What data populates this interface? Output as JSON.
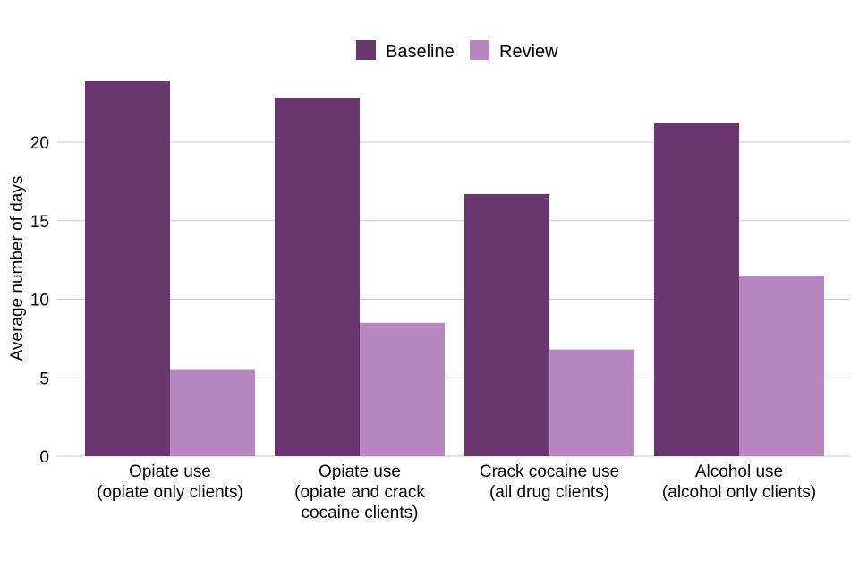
{
  "colors": {
    "baseline": "#6a3670",
    "review": "#b785c0",
    "grid": "#c8c8c8"
  },
  "chart_data": {
    "type": "bar",
    "categories": [
      [
        "Opiate use",
        "(opiate only clients)"
      ],
      [
        "Opiate use",
        "(opiate and crack",
        "cocaine clients)"
      ],
      [
        "Crack cocaine use",
        "(all drug clients)"
      ],
      [
        "Alcohol use",
        "(alcohol only clients)"
      ]
    ],
    "series": [
      {
        "name": "Baseline",
        "color_key": "baseline",
        "values": [
          23.9,
          22.8,
          16.7,
          21.2
        ]
      },
      {
        "name": "Review",
        "color_key": "review",
        "values": [
          5.5,
          8.5,
          6.8,
          11.5
        ]
      }
    ],
    "ylabel": "Average number of days",
    "yticks": [
      0,
      5,
      10,
      15,
      20
    ],
    "ylim": [
      0,
      24
    ],
    "grid": true,
    "legend_position": "top-center"
  }
}
